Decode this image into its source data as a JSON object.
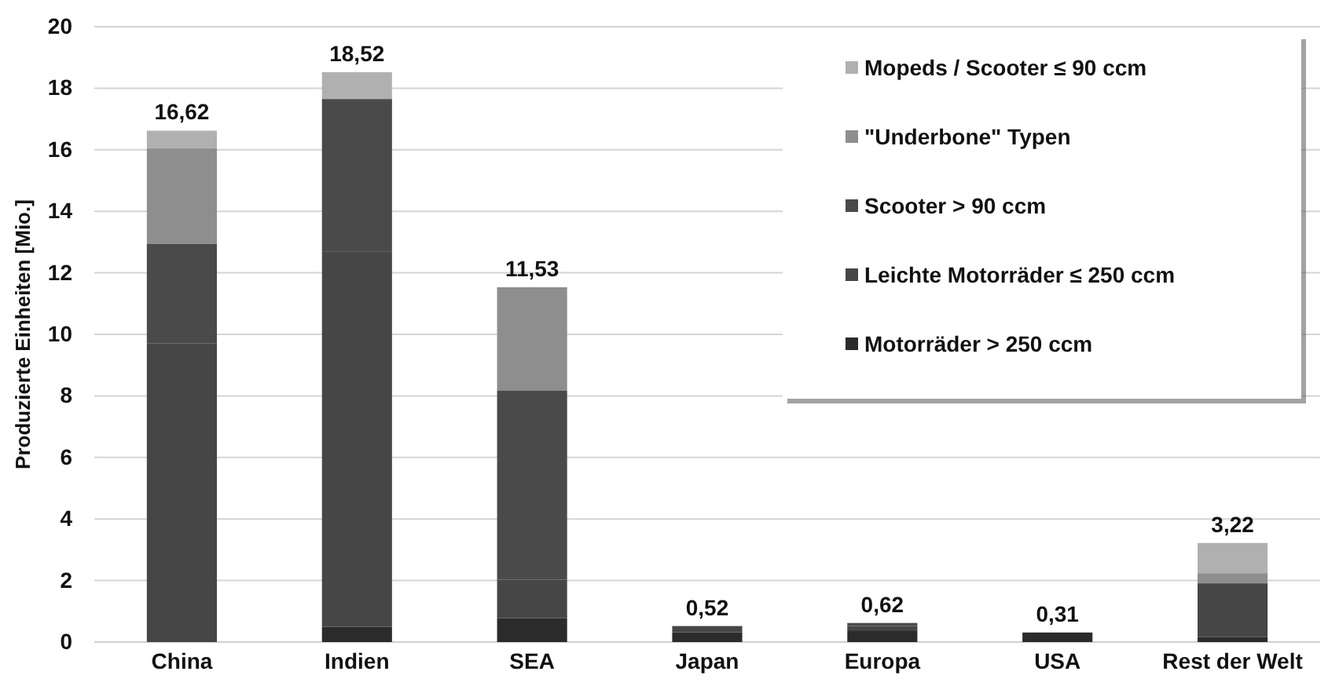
{
  "chart_data": {
    "type": "bar",
    "stacked": true,
    "ylabel": "Produzierte Einheiten [Mio.]",
    "categories": [
      "China",
      "Indien",
      "SEA",
      "Japan",
      "Europa",
      "USA",
      "Rest der Welt"
    ],
    "series": [
      {
        "name": "Motorräder > 250 ccm",
        "color": "#2b2b2b",
        "values": [
          0,
          0.5,
          0.78,
          0.32,
          0.38,
          0.31,
          0.17
        ]
      },
      {
        "name": "Leichte Motorräder ≤ 250 ccm",
        "color": "#464646",
        "values": [
          9.7,
          12.2,
          1.25,
          0.2,
          0.14,
          0,
          1.74
        ]
      },
      {
        "name": "Scooter > 90 ccm",
        "color": "#4a4a4a",
        "values": [
          3.25,
          4.95,
          6.15,
          0,
          0.1,
          0,
          0
        ]
      },
      {
        "name": "\"Underbone\" Typen",
        "color": "#8e8e8e",
        "values": [
          3.1,
          0,
          3.35,
          0,
          0,
          0,
          0.33
        ]
      },
      {
        "name": "Mopeds / Scooter ≤ 90 ccm",
        "color": "#b0b0b0",
        "values": [
          0.57,
          0.87,
          0,
          0,
          0,
          0,
          0.98
        ]
      }
    ],
    "totals": [
      "16,62",
      "18,52",
      "11,53",
      "0,52",
      "0,62",
      "0,31",
      "3,22"
    ],
    "ylim": [
      0,
      20
    ],
    "yticks": [
      0,
      2,
      4,
      6,
      8,
      10,
      12,
      14,
      16,
      18,
      20
    ],
    "grid": "y",
    "legend": "top right"
  }
}
